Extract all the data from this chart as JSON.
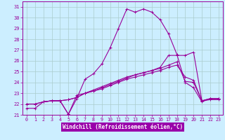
{
  "xlabel": "Windchill (Refroidissement éolien,°C)",
  "xlim": [
    -0.5,
    23.5
  ],
  "ylim": [
    21.0,
    31.5
  ],
  "yticks": [
    21,
    22,
    23,
    24,
    25,
    26,
    27,
    28,
    29,
    30,
    31
  ],
  "xticks": [
    0,
    1,
    2,
    3,
    4,
    5,
    6,
    7,
    8,
    9,
    10,
    11,
    12,
    13,
    14,
    15,
    16,
    17,
    18,
    19,
    20,
    21,
    22,
    23
  ],
  "bg_color": "#cceeff",
  "line_color": "#990099",
  "grid_color": "#aacccc",
  "xlabel_bg": "#9900aa",
  "xlabel_fg": "#ffffff",
  "line1_x": [
    0,
    1,
    2,
    3,
    4,
    5,
    6,
    7,
    8,
    9,
    10,
    11,
    12,
    13,
    14,
    15,
    16,
    17,
    18,
    19,
    20,
    21,
    22,
    23
  ],
  "line1_y": [
    21.6,
    21.6,
    22.2,
    22.3,
    22.3,
    21.05,
    22.5,
    24.3,
    24.8,
    25.7,
    27.2,
    29.0,
    30.8,
    30.5,
    30.8,
    30.5,
    29.8,
    28.5,
    26.6,
    24.0,
    23.5,
    22.2,
    22.5,
    22.5
  ],
  "line2_x": [
    0,
    1,
    2,
    3,
    4,
    5,
    6,
    7,
    8,
    9,
    10,
    11,
    12,
    13,
    14,
    15,
    16,
    17,
    18,
    19,
    20,
    21,
    22,
    23
  ],
  "line2_y": [
    22.0,
    22.0,
    22.2,
    22.3,
    22.3,
    22.4,
    22.6,
    23.0,
    23.2,
    23.4,
    23.7,
    24.0,
    24.3,
    24.5,
    24.7,
    24.9,
    25.1,
    25.4,
    25.6,
    24.5,
    24.2,
    22.3,
    22.5,
    22.5
  ],
  "line3_x": [
    0,
    1,
    2,
    3,
    4,
    5,
    6,
    7,
    8,
    9,
    10,
    11,
    12,
    13,
    14,
    15,
    16,
    17,
    18,
    19,
    20,
    21,
    22,
    23
  ],
  "line3_y": [
    22.0,
    22.0,
    22.2,
    22.3,
    22.3,
    22.4,
    22.6,
    23.0,
    23.3,
    23.6,
    23.9,
    24.2,
    24.5,
    24.7,
    24.9,
    25.1,
    25.3,
    25.6,
    25.9,
    24.1,
    24.0,
    22.3,
    22.4,
    22.4
  ],
  "line4_x": [
    2,
    3,
    4,
    5,
    6,
    7,
    8,
    9,
    10,
    11,
    12,
    13,
    14,
    15,
    16,
    17,
    18,
    19,
    20,
    21,
    22,
    23
  ],
  "line4_y": [
    22.2,
    22.3,
    22.3,
    21.05,
    22.8,
    23.0,
    23.2,
    23.5,
    23.8,
    24.1,
    24.4,
    24.7,
    24.9,
    25.1,
    25.4,
    26.5,
    26.5,
    26.5,
    26.8,
    22.3,
    22.5,
    22.5
  ]
}
